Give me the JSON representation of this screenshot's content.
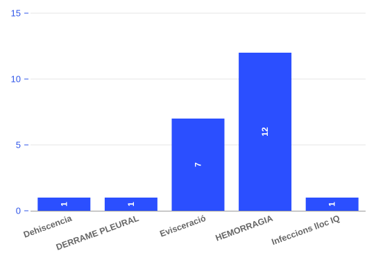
{
  "chart_data": {
    "type": "bar",
    "categories": [
      "Dehiscencia",
      "DERRAME PLEURAL",
      "Evisceració",
      "HEMORRAGIA",
      "Infeccions lloc IQ"
    ],
    "values": [
      1,
      1,
      7,
      12,
      1
    ],
    "title": "",
    "xlabel": "",
    "ylabel": "",
    "ylim": [
      0,
      15
    ],
    "yticks": [
      0,
      5,
      10,
      15
    ],
    "ytick_labels": [
      "0",
      "5",
      "10",
      "15"
    ],
    "data_labels": [
      "1",
      "1",
      "7",
      "12",
      "1"
    ],
    "grid": true,
    "legend": "none",
    "colors": {
      "bar": "#2b4fff",
      "tick_text": "#2f55e8",
      "category_text": "#666666",
      "grid": "#e6e6e6",
      "axis": "#999999"
    }
  }
}
